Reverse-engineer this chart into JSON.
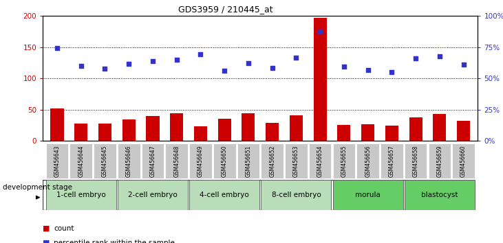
{
  "title": "GDS3959 / 210445_at",
  "samples": [
    "GSM456643",
    "GSM456644",
    "GSM456645",
    "GSM456646",
    "GSM456647",
    "GSM456648",
    "GSM456649",
    "GSM456650",
    "GSM456651",
    "GSM456652",
    "GSM456653",
    "GSM456654",
    "GSM456655",
    "GSM456656",
    "GSM456657",
    "GSM456658",
    "GSM456659",
    "GSM456660"
  ],
  "count_values": [
    52,
    28,
    28,
    34,
    40,
    44,
    23,
    36,
    44,
    29,
    41,
    197,
    26,
    27,
    24,
    38,
    43,
    32
  ],
  "pct_scatter": [
    148,
    120,
    115,
    123,
    128,
    130,
    139,
    112,
    124,
    117,
    133,
    175,
    119,
    113,
    110,
    132,
    135,
    122
  ],
  "bar_color": "#cc0000",
  "scatter_color": "#3333cc",
  "ylim_left": [
    0,
    200
  ],
  "ylim_right": [
    0,
    100
  ],
  "yticks_left": [
    0,
    50,
    100,
    150,
    200
  ],
  "yticks_right": [
    0,
    25,
    50,
    75,
    100
  ],
  "ytick_labels_left": [
    "0",
    "50",
    "100",
    "150",
    "200"
  ],
  "ytick_labels_right": [
    "0%",
    "25%",
    "50%",
    "75%",
    "100%"
  ],
  "grid_values": [
    50,
    100,
    150
  ],
  "stage_groups": {
    "1-cell embryo": [
      0,
      1,
      2
    ],
    "2-cell embryo": [
      3,
      4,
      5
    ],
    "4-cell embryo": [
      6,
      7,
      8
    ],
    "8-cell embryo": [
      9,
      10,
      11
    ],
    "morula": [
      12,
      13,
      14
    ],
    "blastocyst": [
      15,
      16,
      17
    ]
  },
  "stage_bg_alt1": "#c8e6c8",
  "stage_bg_alt2": "#a8d8a8",
  "stage_bg_dark": "#66cc66",
  "tick_bg_color": "#c8c8c8",
  "xlabel": "development stage",
  "legend_count_label": "count",
  "legend_pct_label": "percentile rank within the sample"
}
